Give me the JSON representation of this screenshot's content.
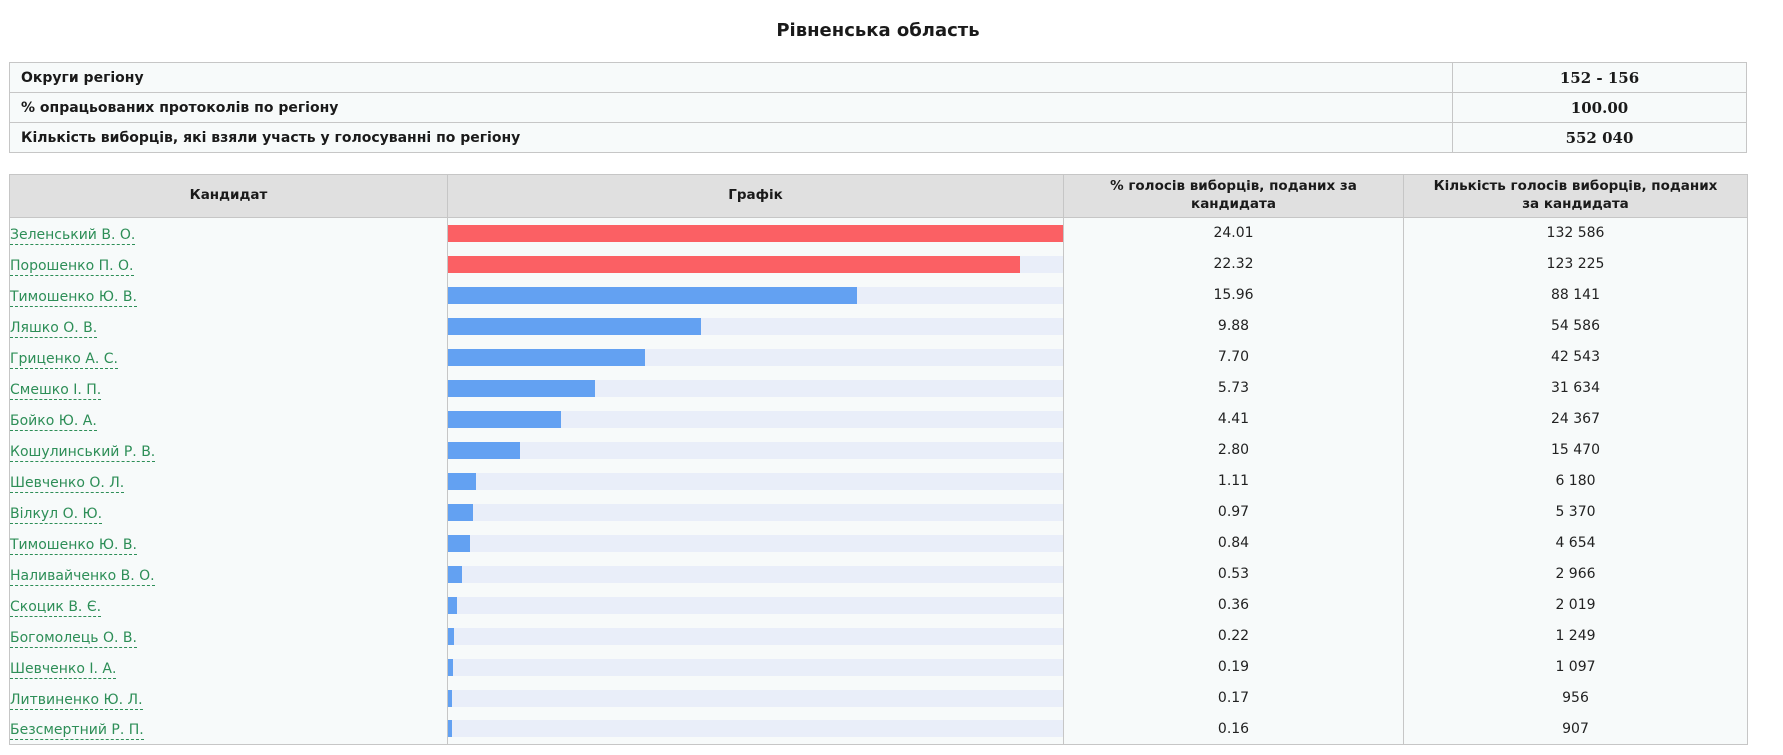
{
  "title": "Рівненська область",
  "colors": {
    "page_background": "#FFFFFF",
    "text": "#1A1A1A",
    "cell_background": "#F7FAFA",
    "header_background": "#E0E0E0",
    "table_border": "#C6C6C6",
    "bar_track": "#E9EEF9",
    "leader_bar": "#FB6064",
    "regular_bar": "#63A1F2",
    "candidate_link": "#2D8E57"
  },
  "info_table": {
    "rows": [
      {
        "label": "Округи регіону",
        "value": "152 - 156"
      },
      {
        "label": "% опрацьованих протоколів по регіону",
        "value": "100.00"
      },
      {
        "label": "Кількість виборців, які взяли участь у голосуванні по регіону",
        "value": "552 040"
      }
    ]
  },
  "results_table": {
    "headers": {
      "candidate": "Кандидат",
      "graph": "Графік",
      "percent": "% голосів виборців, поданих за кандидата",
      "count": "Кількість голосів виборців, поданих за кандидата"
    },
    "bar_scale_max_percent": 24.01,
    "candidates": [
      {
        "name": "Зеленський В. О.",
        "percent": "24.01",
        "votes": "132 586",
        "bar_color": "leader_bar"
      },
      {
        "name": "Порошенко П. О.",
        "percent": "22.32",
        "votes": "123 225",
        "bar_color": "leader_bar"
      },
      {
        "name": "Тимошенко Ю. В.",
        "percent": "15.96",
        "votes": "88 141",
        "bar_color": "regular_bar"
      },
      {
        "name": "Ляшко О. В.",
        "percent": "9.88",
        "votes": "54 586",
        "bar_color": "regular_bar"
      },
      {
        "name": "Гриценко А. С.",
        "percent": "7.70",
        "votes": "42 543",
        "bar_color": "regular_bar"
      },
      {
        "name": "Смешко І. П.",
        "percent": "5.73",
        "votes": "31 634",
        "bar_color": "regular_bar"
      },
      {
        "name": "Бойко Ю. А.",
        "percent": "4.41",
        "votes": "24 367",
        "bar_color": "regular_bar"
      },
      {
        "name": "Кошулинський Р. В.",
        "percent": "2.80",
        "votes": "15 470",
        "bar_color": "regular_bar"
      },
      {
        "name": "Шевченко О. Л.",
        "percent": "1.11",
        "votes": "6 180",
        "bar_color": "regular_bar"
      },
      {
        "name": "Вілкул О. Ю.",
        "percent": "0.97",
        "votes": "5 370",
        "bar_color": "regular_bar"
      },
      {
        "name": "Тимошенко Ю. В.",
        "percent": "0.84",
        "votes": "4 654",
        "bar_color": "regular_bar"
      },
      {
        "name": "Наливайченко В. О.",
        "percent": "0.53",
        "votes": "2 966",
        "bar_color": "regular_bar"
      },
      {
        "name": "Скоцик В. Є.",
        "percent": "0.36",
        "votes": "2 019",
        "bar_color": "regular_bar"
      },
      {
        "name": "Богомолець О. В.",
        "percent": "0.22",
        "votes": "1 249",
        "bar_color": "regular_bar"
      },
      {
        "name": "Шевченко І. А.",
        "percent": "0.19",
        "votes": "1 097",
        "bar_color": "regular_bar"
      },
      {
        "name": "Литвиненко Ю. Л.",
        "percent": "0.17",
        "votes": "956",
        "bar_color": "regular_bar"
      },
      {
        "name": "Безсмертний Р. П.",
        "percent": "0.16",
        "votes": "907",
        "bar_color": "regular_bar"
      }
    ]
  },
  "chart_data": {
    "type": "bar",
    "title": "Рівненська область",
    "orientation": "horizontal",
    "categories": [
      "Зеленський В. О.",
      "Порошенко П. О.",
      "Тимошенко Ю. В.",
      "Ляшко О. В.",
      "Гриценко А. С.",
      "Смешко І. П.",
      "Бойко Ю. А.",
      "Кошулинський Р. В.",
      "Шевченко О. Л.",
      "Вілкул О. Ю.",
      "Тимошенко Ю. В.",
      "Наливайченко В. О.",
      "Скоцик В. Є.",
      "Богомолець О. В.",
      "Шевченко І. А.",
      "Литвиненко Ю. Л.",
      "Безсмертний Р. П."
    ],
    "values": [
      24.01,
      22.32,
      15.96,
      9.88,
      7.7,
      5.73,
      4.41,
      2.8,
      1.11,
      0.97,
      0.84,
      0.53,
      0.36,
      0.22,
      0.19,
      0.17,
      0.16
    ],
    "votes": [
      132586,
      123225,
      88141,
      54586,
      42543,
      31634,
      24367,
      15470,
      6180,
      5370,
      4654,
      2966,
      2019,
      1249,
      1097,
      956,
      907
    ],
    "xlabel": "% голосів виборців, поданих за кандидата",
    "xlim": [
      0,
      24.01
    ],
    "grid": false,
    "legend": false
  }
}
